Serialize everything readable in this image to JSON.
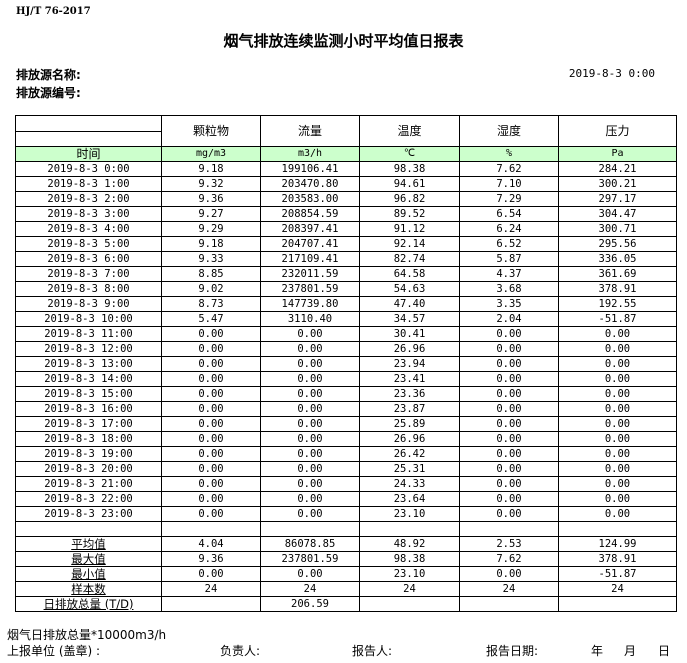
{
  "standard": "HJ/T  76-2017",
  "title": "烟气排放连续监测小时平均值日报表",
  "source_name_label": "排放源名称:",
  "source_no_label": "排放源编号:",
  "report_datetime": "2019-8-3 0:00",
  "columns": [
    "颗粒物",
    "流量",
    "温度",
    "湿度",
    "压力"
  ],
  "units": {
    "time": "时间",
    "values": [
      "mg/m3",
      "m3/h",
      "℃",
      "%",
      "Pa"
    ]
  },
  "header_fill_color": "#ccffcc",
  "rows": [
    [
      "2019-8-3 0:00",
      "9.18",
      "199106.41",
      "98.38",
      "7.62",
      "284.21"
    ],
    [
      "2019-8-3 1:00",
      "9.32",
      "203470.80",
      "94.61",
      "7.10",
      "300.21"
    ],
    [
      "2019-8-3 2:00",
      "9.36",
      "203583.00",
      "96.82",
      "7.29",
      "297.17"
    ],
    [
      "2019-8-3 3:00",
      "9.27",
      "208854.59",
      "89.52",
      "6.54",
      "304.47"
    ],
    [
      "2019-8-3 4:00",
      "9.29",
      "208397.41",
      "91.12",
      "6.24",
      "300.71"
    ],
    [
      "2019-8-3 5:00",
      "9.18",
      "204707.41",
      "92.14",
      "6.52",
      "295.56"
    ],
    [
      "2019-8-3 6:00",
      "9.33",
      "217109.41",
      "82.74",
      "5.87",
      "336.05"
    ],
    [
      "2019-8-3 7:00",
      "8.85",
      "232011.59",
      "64.58",
      "4.37",
      "361.69"
    ],
    [
      "2019-8-3 8:00",
      "9.02",
      "237801.59",
      "54.63",
      "3.68",
      "378.91"
    ],
    [
      "2019-8-3 9:00",
      "8.73",
      "147739.80",
      "47.40",
      "3.35",
      "192.55"
    ],
    [
      "2019-8-3 10:00",
      "5.47",
      "3110.40",
      "34.57",
      "2.04",
      "-51.87"
    ],
    [
      "2019-8-3 11:00",
      "0.00",
      "0.00",
      "30.41",
      "0.00",
      "0.00"
    ],
    [
      "2019-8-3 12:00",
      "0.00",
      "0.00",
      "26.96",
      "0.00",
      "0.00"
    ],
    [
      "2019-8-3 13:00",
      "0.00",
      "0.00",
      "23.94",
      "0.00",
      "0.00"
    ],
    [
      "2019-8-3 14:00",
      "0.00",
      "0.00",
      "23.41",
      "0.00",
      "0.00"
    ],
    [
      "2019-8-3 15:00",
      "0.00",
      "0.00",
      "23.36",
      "0.00",
      "0.00"
    ],
    [
      "2019-8-3 16:00",
      "0.00",
      "0.00",
      "23.87",
      "0.00",
      "0.00"
    ],
    [
      "2019-8-3 17:00",
      "0.00",
      "0.00",
      "25.89",
      "0.00",
      "0.00"
    ],
    [
      "2019-8-3 18:00",
      "0.00",
      "0.00",
      "26.96",
      "0.00",
      "0.00"
    ],
    [
      "2019-8-3 19:00",
      "0.00",
      "0.00",
      "26.42",
      "0.00",
      "0.00"
    ],
    [
      "2019-8-3 20:00",
      "0.00",
      "0.00",
      "25.31",
      "0.00",
      "0.00"
    ],
    [
      "2019-8-3 21:00",
      "0.00",
      "0.00",
      "24.33",
      "0.00",
      "0.00"
    ],
    [
      "2019-8-3 22:00",
      "0.00",
      "0.00",
      "23.64",
      "0.00",
      "0.00"
    ],
    [
      "2019-8-3 23:00",
      "0.00",
      "0.00",
      "23.10",
      "0.00",
      "0.00"
    ]
  ],
  "stats": [
    [
      "平均值",
      "4.04",
      "86078.85",
      "48.92",
      "2.53",
      "124.99"
    ],
    [
      "最大值",
      "9.36",
      "237801.59",
      "98.38",
      "7.62",
      "378.91"
    ],
    [
      "最小值",
      "0.00",
      "0.00",
      "23.10",
      "0.00",
      "-51.87"
    ],
    [
      "样本数",
      "24",
      "24",
      "24",
      "24",
      "24"
    ],
    [
      "日排放总量 (T/D)",
      "",
      "206.59",
      "",
      "",
      ""
    ]
  ],
  "footer": {
    "note": "烟气日排放总量*10000m3/h",
    "unit_label": "上报单位 (盖章) :",
    "responsible_label": "负责人:",
    "reporter_label": "报告人:",
    "report_date_label": "报告日期:",
    "year": "年",
    "month": "月",
    "day": "日"
  }
}
